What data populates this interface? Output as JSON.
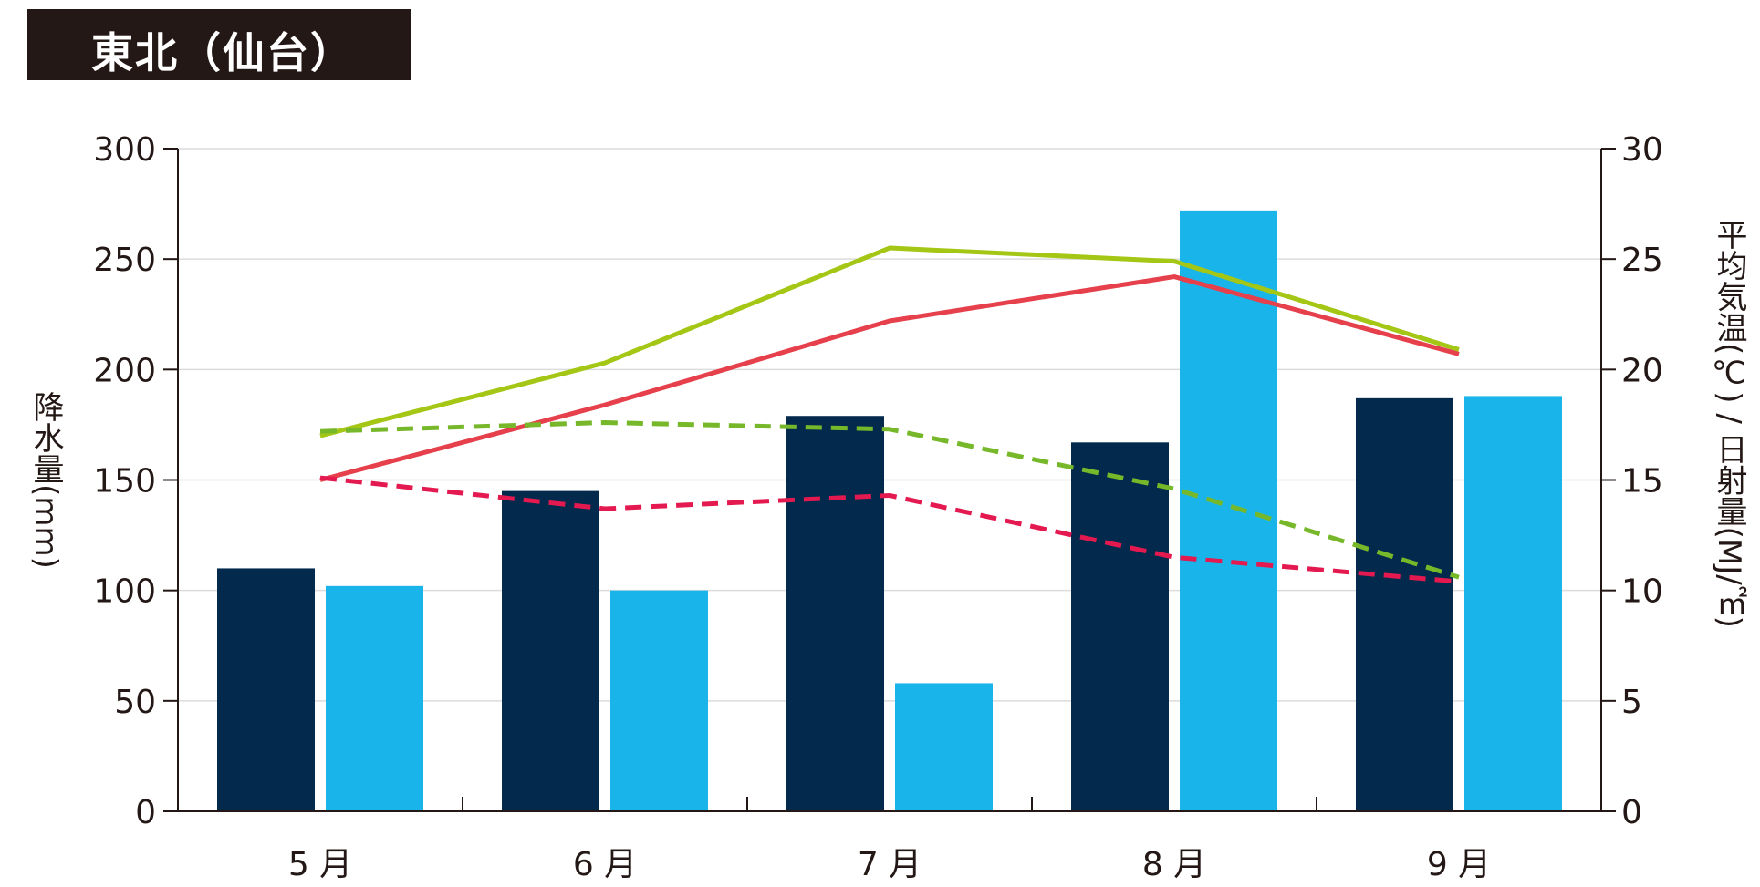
{
  "title": "東北（仙台）",
  "chart_data": {
    "type": "bar",
    "categories": [
      "5 月",
      "6 月",
      "7 月",
      "8 月",
      "9 月"
    ],
    "y_left": {
      "label": "降水量(mm)",
      "range": [
        0,
        300
      ],
      "ticks": [
        "0",
        "50",
        "100",
        "150",
        "200",
        "250",
        "300"
      ]
    },
    "y_right": {
      "label": "平均気温(℃) / 日射量(MJ/㎡)",
      "range": [
        0,
        30
      ],
      "ticks": [
        "0",
        "5",
        "10",
        "15",
        "20",
        "25",
        "30"
      ]
    },
    "grid": true,
    "bar_series": [
      {
        "values": [
          110,
          145,
          179,
          167,
          187
        ],
        "color": "#03294c",
        "axis": "left"
      },
      {
        "values": [
          102,
          100,
          58,
          272,
          188
        ],
        "color": "#19b5ea",
        "axis": "left"
      }
    ],
    "line_series": [
      {
        "values": [
          17.0,
          20.3,
          25.5,
          24.9,
          20.9
        ],
        "color": "#a4c615",
        "dash": false,
        "axis": "right"
      },
      {
        "values": [
          15.0,
          18.4,
          22.2,
          24.2,
          20.7
        ],
        "color": "#e5404b",
        "dash": false,
        "axis": "right"
      },
      {
        "values": [
          17.2,
          17.6,
          17.3,
          14.6,
          10.6
        ],
        "color": "#77b82b",
        "dash": true,
        "axis": "right"
      },
      {
        "values": [
          15.1,
          13.7,
          14.3,
          11.5,
          10.4
        ],
        "color": "#e3194f",
        "dash": true,
        "axis": "right"
      }
    ]
  }
}
